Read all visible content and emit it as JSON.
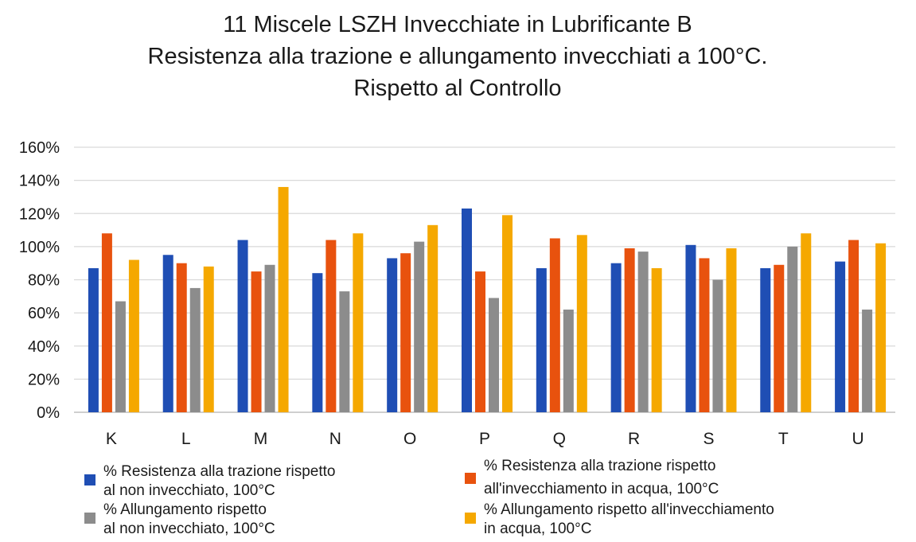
{
  "chart_data": {
    "type": "bar",
    "title": [
      "11 Miscele LSZH Invecchiate in Lubrificante B",
      "Resistenza alla trazione e allungamento invecchiati a 100°C.",
      "Rispetto al Controllo"
    ],
    "categories": [
      "K",
      "L",
      "M",
      "N",
      "O",
      "P",
      "Q",
      "R",
      "S",
      "T",
      "U"
    ],
    "y_ticks": [
      "0%",
      "20%",
      "40%",
      "60%",
      "80%",
      "100%",
      "120%",
      "140%",
      "160%"
    ],
    "ylim": [
      0,
      160
    ],
    "grid": true,
    "legend_position": "bottom",
    "series": [
      {
        "name": [
          "% Resistenza alla trazione rispetto",
          "al non invecchiato, 100°C"
        ],
        "color": "#1f4eb4",
        "values": [
          87,
          95,
          104,
          84,
          93,
          123,
          87,
          90,
          101,
          87,
          91
        ]
      },
      {
        "name": [
          "% Resistenza alla trazione rispetto",
          "all'invecchiamento in acqua, 100°C"
        ],
        "color": "#e8520e",
        "values": [
          108,
          90,
          85,
          104,
          96,
          85,
          105,
          99,
          93,
          89,
          104
        ]
      },
      {
        "name": [
          "% Allungamento rispetto",
          "al non invecchiato, 100°C"
        ],
        "color": "#8c8c8c",
        "values": [
          67,
          75,
          89,
          73,
          103,
          69,
          62,
          97,
          80,
          100,
          62
        ]
      },
      {
        "name": [
          "% Allungamento rispetto all'invecchiamento",
          "in acqua, 100°C"
        ],
        "color": "#f5a800",
        "values": [
          92,
          88,
          136,
          108,
          113,
          119,
          107,
          87,
          99,
          108,
          102
        ]
      }
    ]
  }
}
